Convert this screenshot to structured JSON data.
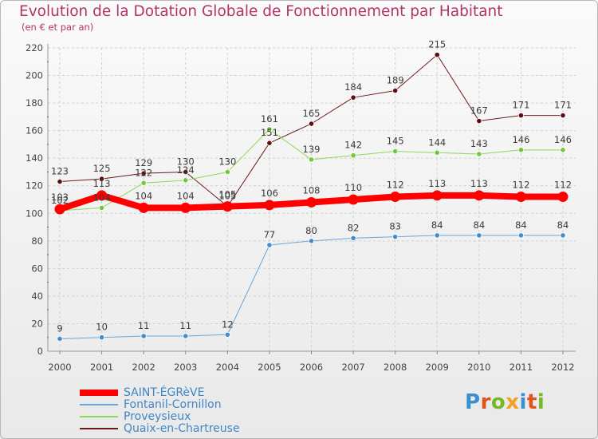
{
  "title": "Evolution de la Dotation Globale de Fonctionnement par Habitant",
  "subtitle": "(en € et par an)",
  "logo": {
    "text": "Proxiti",
    "colors": [
      "#3a8fd0",
      "#e0531f",
      "#76b82a",
      "#f0a020",
      "#3a8fd0",
      "#e0531f",
      "#76b82a"
    ]
  },
  "chart_data": {
    "type": "line",
    "title": "Evolution de la Dotation Globale de Fonctionnement par Habitant",
    "ylabel": "(en € et par an)",
    "xlabel": "",
    "categories": [
      "2000",
      "2001",
      "2002",
      "2003",
      "2004",
      "2005",
      "2006",
      "2007",
      "2008",
      "2009",
      "2010",
      "2011",
      "2012"
    ],
    "ylim": [
      0,
      220
    ],
    "yticks": [
      0,
      20,
      40,
      60,
      80,
      100,
      120,
      140,
      160,
      180,
      200,
      220
    ],
    "grid": true,
    "legend_position": "bottom-left",
    "series": [
      {
        "name": "Quaix-en-Chartreuse",
        "color": "#6b1a1a",
        "marker": "#5a1010",
        "width": 1,
        "values": [
          123,
          125,
          129,
          130,
          105,
          151,
          165,
          184,
          189,
          215,
          167,
          171,
          171
        ]
      },
      {
        "name": "Proveysieux",
        "color": "#8cd85a",
        "marker": "#72c83c",
        "width": 1,
        "values": [
          102,
          104,
          122,
          124,
          130,
          161,
          139,
          142,
          145,
          144,
          143,
          146,
          146
        ]
      },
      {
        "name": "Fontanil-Cornillon",
        "color": "#6aa6da",
        "marker": "#4a8cc8",
        "width": 1,
        "values": [
          9,
          10,
          11,
          11,
          12,
          77,
          80,
          82,
          83,
          84,
          84,
          84,
          84
        ]
      },
      {
        "name": "SAINT-ÉGRèVE",
        "color": "#ff0000",
        "marker": "#ff0000",
        "width": 8,
        "values": [
          103,
          113,
          104,
          104,
          105,
          106,
          108,
          110,
          112,
          113,
          113,
          112,
          112
        ]
      }
    ]
  }
}
